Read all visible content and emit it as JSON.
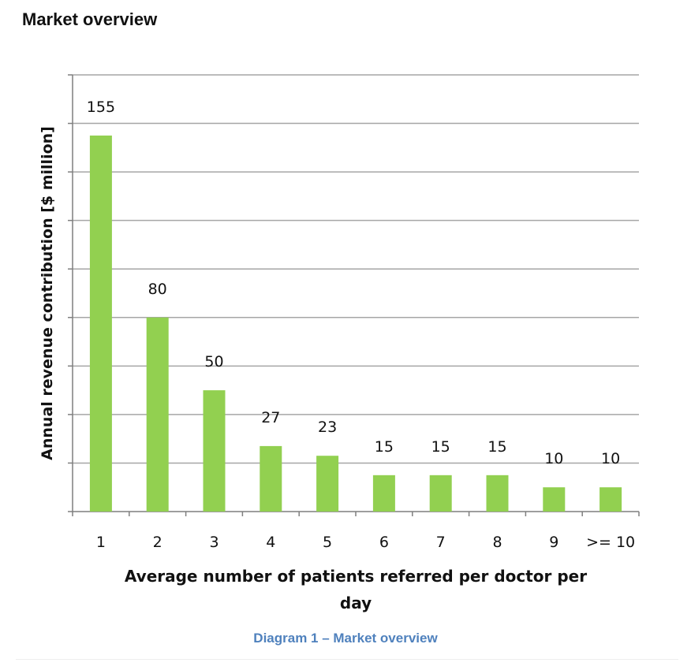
{
  "page": {
    "heading": "Market overview",
    "caption": "Diagram 1 – Market overview"
  },
  "colors": {
    "bar": "#92d050",
    "grid": "#a6a6a6",
    "axis": "#7f7f7f",
    "caption": "#4f81bd"
  },
  "chart_data": {
    "type": "bar",
    "title": "",
    "xlabel": "Average number of patients referred per doctor per day",
    "ylabel": "Annual revenue contribution [$ million]",
    "categories": [
      "1",
      "2",
      "3",
      "4",
      "5",
      "6",
      "7",
      "8",
      "9",
      ">= 10"
    ],
    "values": [
      155,
      80,
      50,
      27,
      23,
      15,
      15,
      15,
      10,
      10
    ],
    "data_labels": [
      "155",
      "80",
      "50",
      "27",
      "23",
      "15",
      "15",
      "15",
      "10",
      "10"
    ],
    "ylim": [
      0,
      180
    ],
    "ytick_step": 20,
    "ytick_labels_shown": false,
    "grid": true,
    "legend": "none"
  }
}
